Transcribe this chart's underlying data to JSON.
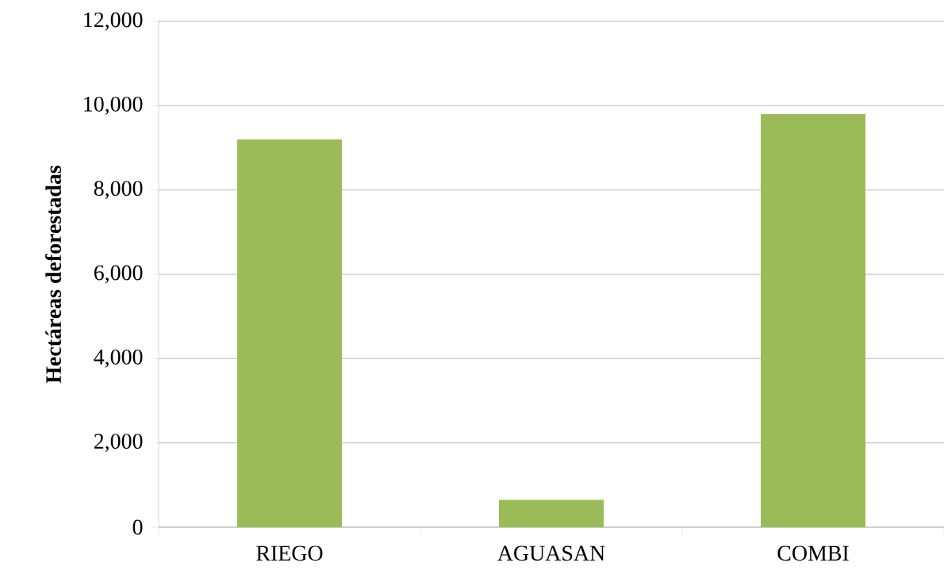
{
  "chart_data": {
    "type": "bar",
    "ylabel": "Hectáreas deforestadas",
    "categories": [
      "RIEGO",
      "AGUASAN",
      "COMBI"
    ],
    "values": [
      9200,
      650,
      9800
    ],
    "color": "#9bbb59",
    "ylim": [
      0,
      12000
    ],
    "yticks": [
      0,
      {
        "value": 2000,
        "label": "2,000"
      },
      {
        "value": 4000,
        "label": "4,000"
      },
      {
        "value": 6000,
        "label": "6,000"
      },
      {
        "value": 8000,
        "label": "8,000"
      },
      {
        "value": 10000,
        "label": "10,000"
      },
      {
        "value": 12000,
        "label": "12,000"
      }
    ],
    "grid": "y"
  }
}
